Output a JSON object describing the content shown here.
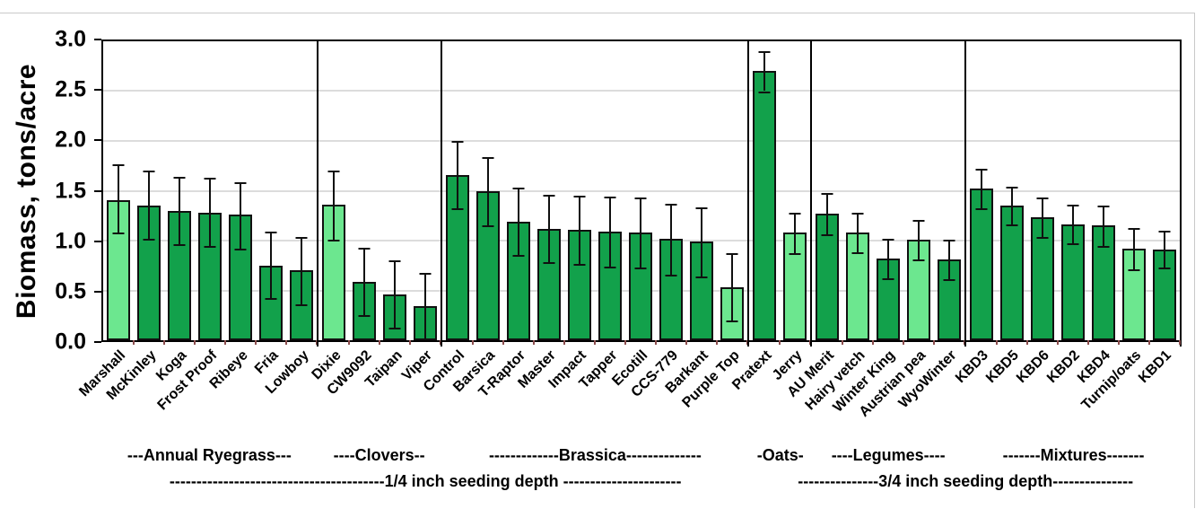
{
  "chart_data": {
    "type": "bar",
    "title": "",
    "ylabel": "Biomass, tons/acre",
    "xlabel": "",
    "ylim": [
      0,
      3.0
    ],
    "ytick_step": 0.5,
    "yticks": [
      "3.0",
      "2.5",
      "2.0",
      "1.5",
      "1.0",
      "0.5",
      "0.0"
    ],
    "grid": "horizontal",
    "legend": "none",
    "error_bars": true,
    "colors": {
      "bar_dark": "#12a14b",
      "bar_light": "#6ce78f",
      "bar_border": "#101010",
      "error_bar": "#101010",
      "gridline": "#dcdcdc",
      "axis": "#000000",
      "minor_tick": "#8b4d4d"
    },
    "groups": [
      {
        "category": "Annual Ryegrass",
        "label": "---Annual Ryegrass---",
        "bars": [
          {
            "name": "Marshall",
            "value": 1.41,
            "err_lo": 1.08,
            "err_hi": 1.77,
            "shade": "light"
          },
          {
            "name": "McKinley",
            "value": 1.35,
            "err_lo": 1.02,
            "err_hi": 1.7,
            "shade": "dark"
          },
          {
            "name": "Koga",
            "value": 1.3,
            "err_lo": 0.96,
            "err_hi": 1.64,
            "shade": "dark"
          },
          {
            "name": "Frost Proof",
            "value": 1.28,
            "err_lo": 0.95,
            "err_hi": 1.63,
            "shade": "dark"
          },
          {
            "name": "Ribeye",
            "value": 1.26,
            "err_lo": 0.92,
            "err_hi": 1.59,
            "shade": "dark"
          },
          {
            "name": "Fria",
            "value": 0.75,
            "err_lo": 0.42,
            "err_hi": 1.09,
            "shade": "dark"
          },
          {
            "name": "Lowboy",
            "value": 0.7,
            "err_lo": 0.36,
            "err_hi": 1.04,
            "shade": "dark"
          }
        ]
      },
      {
        "category": "Clovers",
        "label": "----Clovers--",
        "bars": [
          {
            "name": "Dixie",
            "value": 1.36,
            "err_lo": 1.01,
            "err_hi": 1.7,
            "shade": "light"
          },
          {
            "name": "CW9092",
            "value": 0.59,
            "err_lo": 0.25,
            "err_hi": 0.93,
            "shade": "dark"
          },
          {
            "name": "Taipan",
            "value": 0.46,
            "err_lo": 0.13,
            "err_hi": 0.8,
            "shade": "dark"
          },
          {
            "name": "Viper",
            "value": 0.34,
            "err_lo": 0.02,
            "err_hi": 0.68,
            "shade": "dark"
          }
        ]
      },
      {
        "category": "Brassica",
        "label": "-------------Brassica--------------",
        "bars": [
          {
            "name": "Control",
            "value": 1.66,
            "err_lo": 1.32,
            "err_hi": 2.0,
            "shade": "dark"
          },
          {
            "name": "Barsica",
            "value": 1.5,
            "err_lo": 1.15,
            "err_hi": 1.84,
            "shade": "dark"
          },
          {
            "name": "T-Raptor",
            "value": 1.19,
            "err_lo": 0.86,
            "err_hi": 1.53,
            "shade": "dark"
          },
          {
            "name": "Master",
            "value": 1.12,
            "err_lo": 0.78,
            "err_hi": 1.46,
            "shade": "dark"
          },
          {
            "name": "Impact",
            "value": 1.11,
            "err_lo": 0.77,
            "err_hi": 1.45,
            "shade": "dark"
          },
          {
            "name": "Tapper",
            "value": 1.09,
            "err_lo": 0.74,
            "err_hi": 1.44,
            "shade": "dark"
          },
          {
            "name": "Ecotill",
            "value": 1.08,
            "err_lo": 0.73,
            "err_hi": 1.43,
            "shade": "dark"
          },
          {
            "name": "CCS-779",
            "value": 1.02,
            "err_lo": 0.66,
            "err_hi": 1.37,
            "shade": "dark"
          },
          {
            "name": "Barkant",
            "value": 0.99,
            "err_lo": 0.64,
            "err_hi": 1.33,
            "shade": "dark"
          },
          {
            "name": "Purple Top",
            "value": 0.53,
            "err_lo": 0.2,
            "err_hi": 0.87,
            "shade": "light"
          }
        ]
      },
      {
        "category": "Oats",
        "label": "-Oats-",
        "bars": [
          {
            "name": "Pratext",
            "value": 2.7,
            "err_lo": 2.5,
            "err_hi": 2.9,
            "shade": "dark"
          },
          {
            "name": "Jerry",
            "value": 1.08,
            "err_lo": 0.87,
            "err_hi": 1.28,
            "shade": "light"
          }
        ]
      },
      {
        "category": "Legumes",
        "label": "----Legumes----",
        "bars": [
          {
            "name": "AU Merit",
            "value": 1.27,
            "err_lo": 1.06,
            "err_hi": 1.48,
            "shade": "dark"
          },
          {
            "name": "Hairy vetch",
            "value": 1.08,
            "err_lo": 0.88,
            "err_hi": 1.28,
            "shade": "light"
          },
          {
            "name": "Winter King",
            "value": 0.82,
            "err_lo": 0.62,
            "err_hi": 1.02,
            "shade": "dark"
          },
          {
            "name": "Austrian pea",
            "value": 1.01,
            "err_lo": 0.81,
            "err_hi": 1.21,
            "shade": "light"
          },
          {
            "name": "WyoWinter",
            "value": 0.81,
            "err_lo": 0.61,
            "err_hi": 1.01,
            "shade": "dark"
          }
        ]
      },
      {
        "category": "Mixtures",
        "label": "-------Mixtures-------",
        "bars": [
          {
            "name": "KBD3",
            "value": 1.52,
            "err_lo": 1.32,
            "err_hi": 1.72,
            "shade": "dark"
          },
          {
            "name": "KBD5",
            "value": 1.35,
            "err_lo": 1.16,
            "err_hi": 1.54,
            "shade": "dark"
          },
          {
            "name": "KBD6",
            "value": 1.23,
            "err_lo": 1.04,
            "err_hi": 1.43,
            "shade": "dark"
          },
          {
            "name": "KBD2",
            "value": 1.16,
            "err_lo": 0.97,
            "err_hi": 1.36,
            "shade": "dark"
          },
          {
            "name": "KBD4",
            "value": 1.15,
            "err_lo": 0.95,
            "err_hi": 1.35,
            "shade": "dark"
          },
          {
            "name": "Turnip/oats",
            "value": 0.92,
            "err_lo": 0.71,
            "err_hi": 1.13,
            "shade": "light"
          },
          {
            "name": "KBD1",
            "value": 0.91,
            "err_lo": 0.73,
            "err_hi": 1.1,
            "shade": "dark"
          }
        ]
      }
    ],
    "depth_sections": [
      {
        "label": "----------------------------------------1/4 inch seeding depth ----------------------",
        "from_group": 0,
        "to_group": 2
      },
      {
        "label": "---------------3/4 inch seeding depth---------------",
        "from_group": 3,
        "to_group": 5
      }
    ]
  }
}
